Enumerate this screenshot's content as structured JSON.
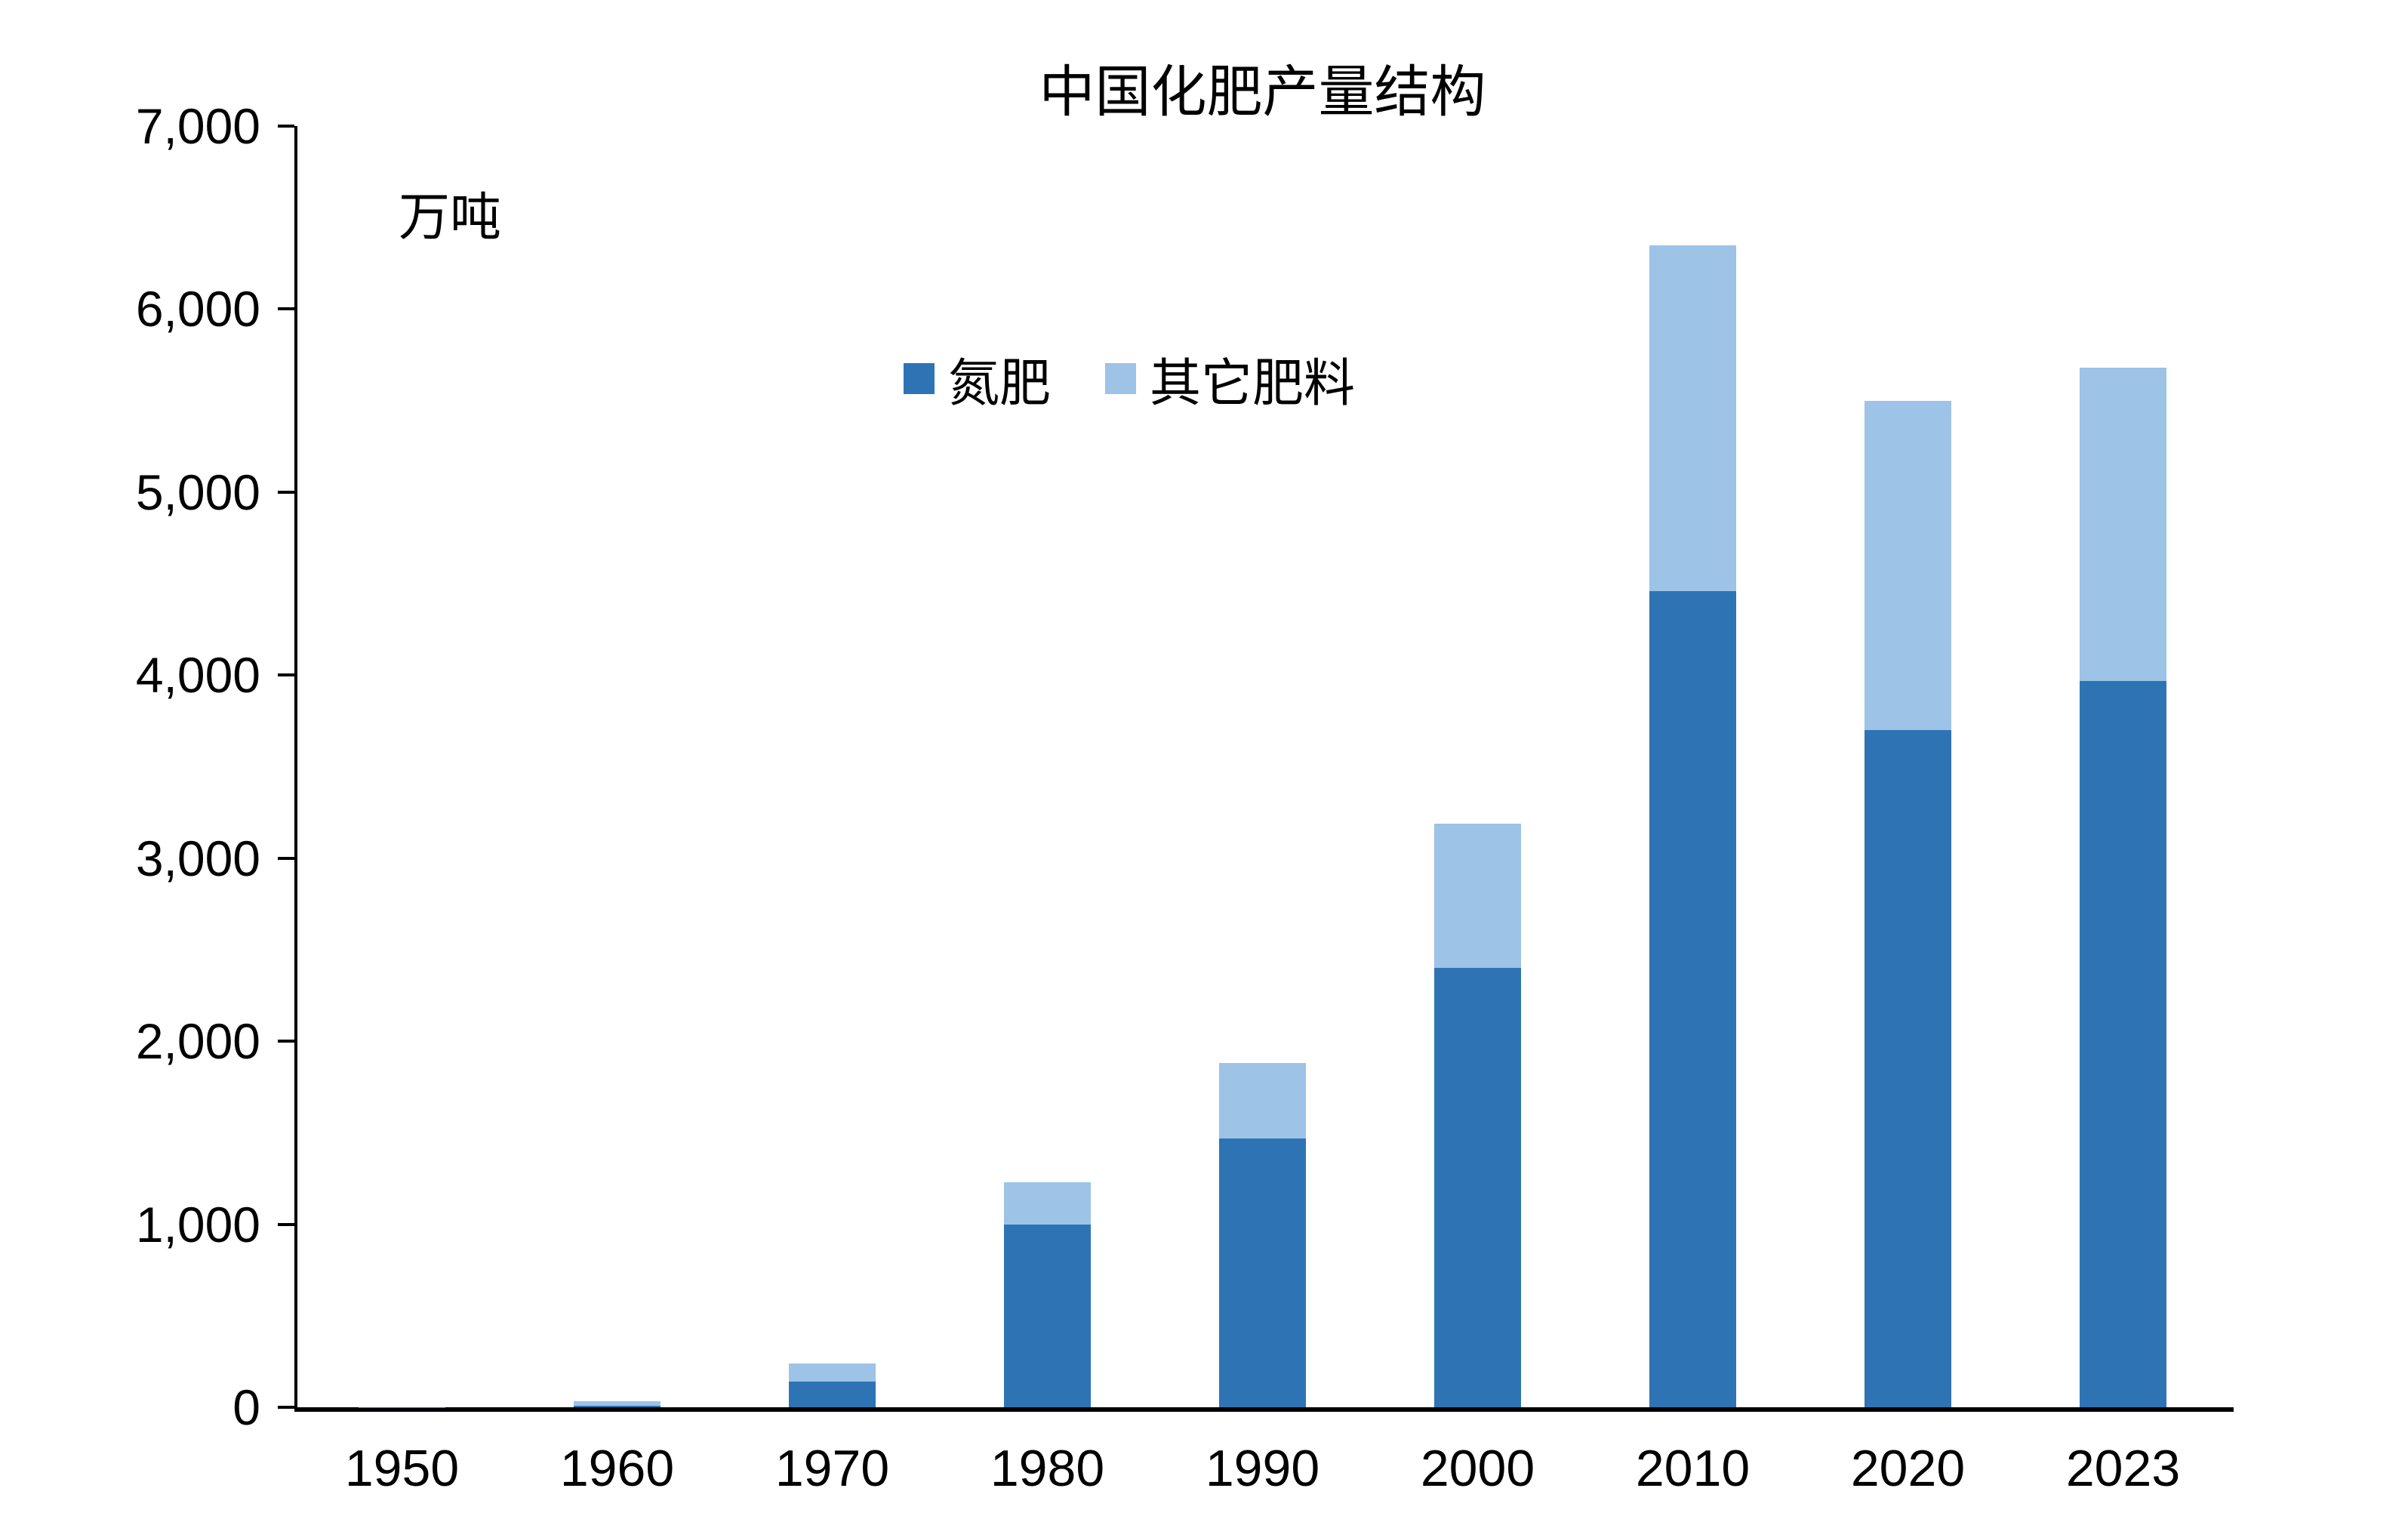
{
  "chart_data": {
    "type": "bar",
    "stacked": true,
    "title": "中国化肥产量结构",
    "unit_label": "万吨",
    "xlabel": "",
    "ylabel": "万吨",
    "categories": [
      "1950",
      "1960",
      "1970",
      "1980",
      "1990",
      "2000",
      "2010",
      "2020",
      "2023"
    ],
    "series": [
      {
        "name": "氮肥",
        "color": "#2E74B5",
        "values": [
          1,
          10,
          140,
          1000,
          1470,
          2400,
          4460,
          3700,
          3970
        ]
      },
      {
        "name": "其它肥料",
        "color": "#9DC3E6",
        "values": [
          1,
          25,
          100,
          230,
          410,
          790,
          1890,
          1800,
          1710
        ]
      }
    ],
    "totals": [
      2,
      35,
      240,
      1230,
      1880,
      3190,
      6350,
      5500,
      5680
    ],
    "ylim": [
      0,
      7000
    ],
    "ytick_step": 1000,
    "ytick_labels": [
      "0",
      "1,000",
      "2,000",
      "3,000",
      "4,000",
      "5,000",
      "6,000",
      "7,000"
    ],
    "grid": false,
    "legend_position": "upper-left-of-center",
    "axis_color": "#000000",
    "background_color": "#FFFFFF"
  }
}
